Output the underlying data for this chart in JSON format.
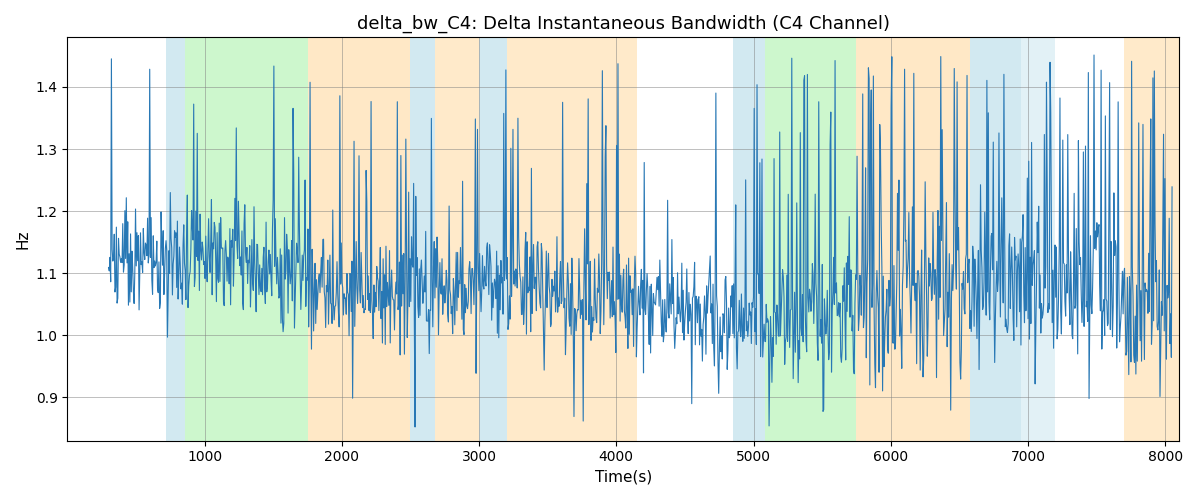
{
  "title": "delta_bw_C4: Delta Instantaneous Bandwidth (C4 Channel)",
  "xlabel": "Time(s)",
  "ylabel": "Hz",
  "xlim": [
    0,
    8100
  ],
  "ylim": [
    0.83,
    1.48
  ],
  "yticks": [
    0.9,
    1.0,
    1.1,
    1.2,
    1.3,
    1.4
  ],
  "xticks": [
    1000,
    2000,
    3000,
    4000,
    5000,
    6000,
    7000,
    8000
  ],
  "line_color": "#2878b5",
  "line_width": 0.8,
  "bg_regions": [
    {
      "xmin": 720,
      "xmax": 860,
      "color": "#add8e6",
      "alpha": 0.55
    },
    {
      "xmin": 860,
      "xmax": 1750,
      "color": "#90ee90",
      "alpha": 0.45
    },
    {
      "xmin": 1750,
      "xmax": 2500,
      "color": "#ffd9a0",
      "alpha": 0.6
    },
    {
      "xmin": 2500,
      "xmax": 2680,
      "color": "#add8e6",
      "alpha": 0.55
    },
    {
      "xmin": 2680,
      "xmax": 3000,
      "color": "#ffd9a0",
      "alpha": 0.55
    },
    {
      "xmin": 3000,
      "xmax": 3200,
      "color": "#add8e6",
      "alpha": 0.55
    },
    {
      "xmin": 3200,
      "xmax": 4150,
      "color": "#ffd9a0",
      "alpha": 0.55
    },
    {
      "xmin": 4850,
      "xmax": 5080,
      "color": "#add8e6",
      "alpha": 0.55
    },
    {
      "xmin": 5080,
      "xmax": 5750,
      "color": "#90ee90",
      "alpha": 0.45
    },
    {
      "xmin": 5750,
      "xmax": 6580,
      "color": "#ffd9a0",
      "alpha": 0.6
    },
    {
      "xmin": 6580,
      "xmax": 6950,
      "color": "#add8e6",
      "alpha": 0.55
    },
    {
      "xmin": 6950,
      "xmax": 7200,
      "color": "#add8e6",
      "alpha": 0.35
    },
    {
      "xmin": 7700,
      "xmax": 8100,
      "color": "#ffd9a0",
      "alpha": 0.55
    }
  ],
  "figsize": [
    12.0,
    5.0
  ],
  "dpi": 100
}
